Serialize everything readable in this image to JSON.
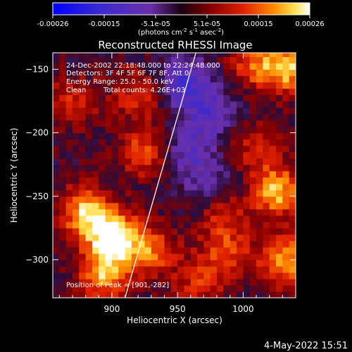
{
  "colorbar": {
    "ticks": [
      "-0.00026",
      "-0.00015",
      "-5.1e-05",
      "5.1e-05",
      "0.00015",
      "0.00026"
    ],
    "units_main": "(photons cm",
    "units_exp1": "-2",
    "units_mid": " s",
    "units_exp2": "-1",
    "units_end": " asec",
    "units_exp3": "-2",
    "units_close": ")"
  },
  "title": "Reconstructed RHESSI Image",
  "annotations": {
    "time_range": "24-Dec-2002 22:18:48.000 to 22:24:48.000",
    "detectors": "Detectors: 3F 4F 5F 6F 7F 8F, Att 0",
    "energy": "Energy Range: 25.0 - 50.0 keV",
    "method": "Clean",
    "counts": "Total counts: 4.26E+03",
    "peak": "Position of Peak = [901,-282]"
  },
  "footer_date": "4-May-2022 15:51",
  "colors": {
    "background": "#000000",
    "limb_line": "#ffffff",
    "text": "#ffffff",
    "scale_low": "#0000ff",
    "scale_mid": "#6a2fa8",
    "scale_high": "#ffffff"
  },
  "chart_data": {
    "type": "heatmap",
    "title": "Reconstructed RHESSI Image",
    "xlabel": "Heliocentric X (arcsec)",
    "ylabel": "Heliocentric Y (arcsec)",
    "xlim": [
      855,
      1040
    ],
    "ylim": [
      -330,
      -137
    ],
    "x_ticks": [
      900,
      950,
      1000
    ],
    "y_ticks": [
      -150,
      -200,
      -250,
      -300
    ],
    "x_tick_labels": [
      "900",
      "950",
      "1000"
    ],
    "y_tick_labels": [
      "−150",
      "−200",
      "−250",
      "−300"
    ],
    "colorbar_range": [
      -0.00026,
      0.00026
    ],
    "limb_line": [
      [
        910,
        -330
      ],
      [
        964,
        -137
      ]
    ],
    "peak_position": [
      901,
      -282
    ],
    "bright_regions": [
      {
        "x": 901,
        "y": -282,
        "value": 0.00026
      },
      {
        "x": 880,
        "y": -262,
        "value": 0.0002
      },
      {
        "x": 894,
        "y": -312,
        "value": 0.00018
      },
      {
        "x": 925,
        "y": -215,
        "value": 0.00013
      },
      {
        "x": 930,
        "y": -293,
        "value": 0.00014
      },
      {
        "x": 1035,
        "y": -148,
        "value": 0.0002
      },
      {
        "x": 1008,
        "y": -146,
        "value": 0.00012
      },
      {
        "x": 1026,
        "y": -246,
        "value": 0.0002
      },
      {
        "x": 1032,
        "y": -300,
        "value": 0.00019
      },
      {
        "x": 986,
        "y": -296,
        "value": 0.00012
      },
      {
        "x": 870,
        "y": -175,
        "value": 0.0001
      },
      {
        "x": 920,
        "y": -170,
        "value": 0.00011
      },
      {
        "x": 965,
        "y": -320,
        "value": 9e-05
      },
      {
        "x": 1010,
        "y": -210,
        "value": 0.0001
      },
      {
        "x": 985,
        "y": -265,
        "value": 0.0001
      }
    ],
    "dark_regions": [
      {
        "x": 955,
        "y": -160,
        "value": -0.00015
      },
      {
        "x": 975,
        "y": -185,
        "value": -0.00012
      },
      {
        "x": 958,
        "y": -215,
        "value": -0.0001
      },
      {
        "x": 975,
        "y": -240,
        "value": -8e-05
      }
    ]
  }
}
